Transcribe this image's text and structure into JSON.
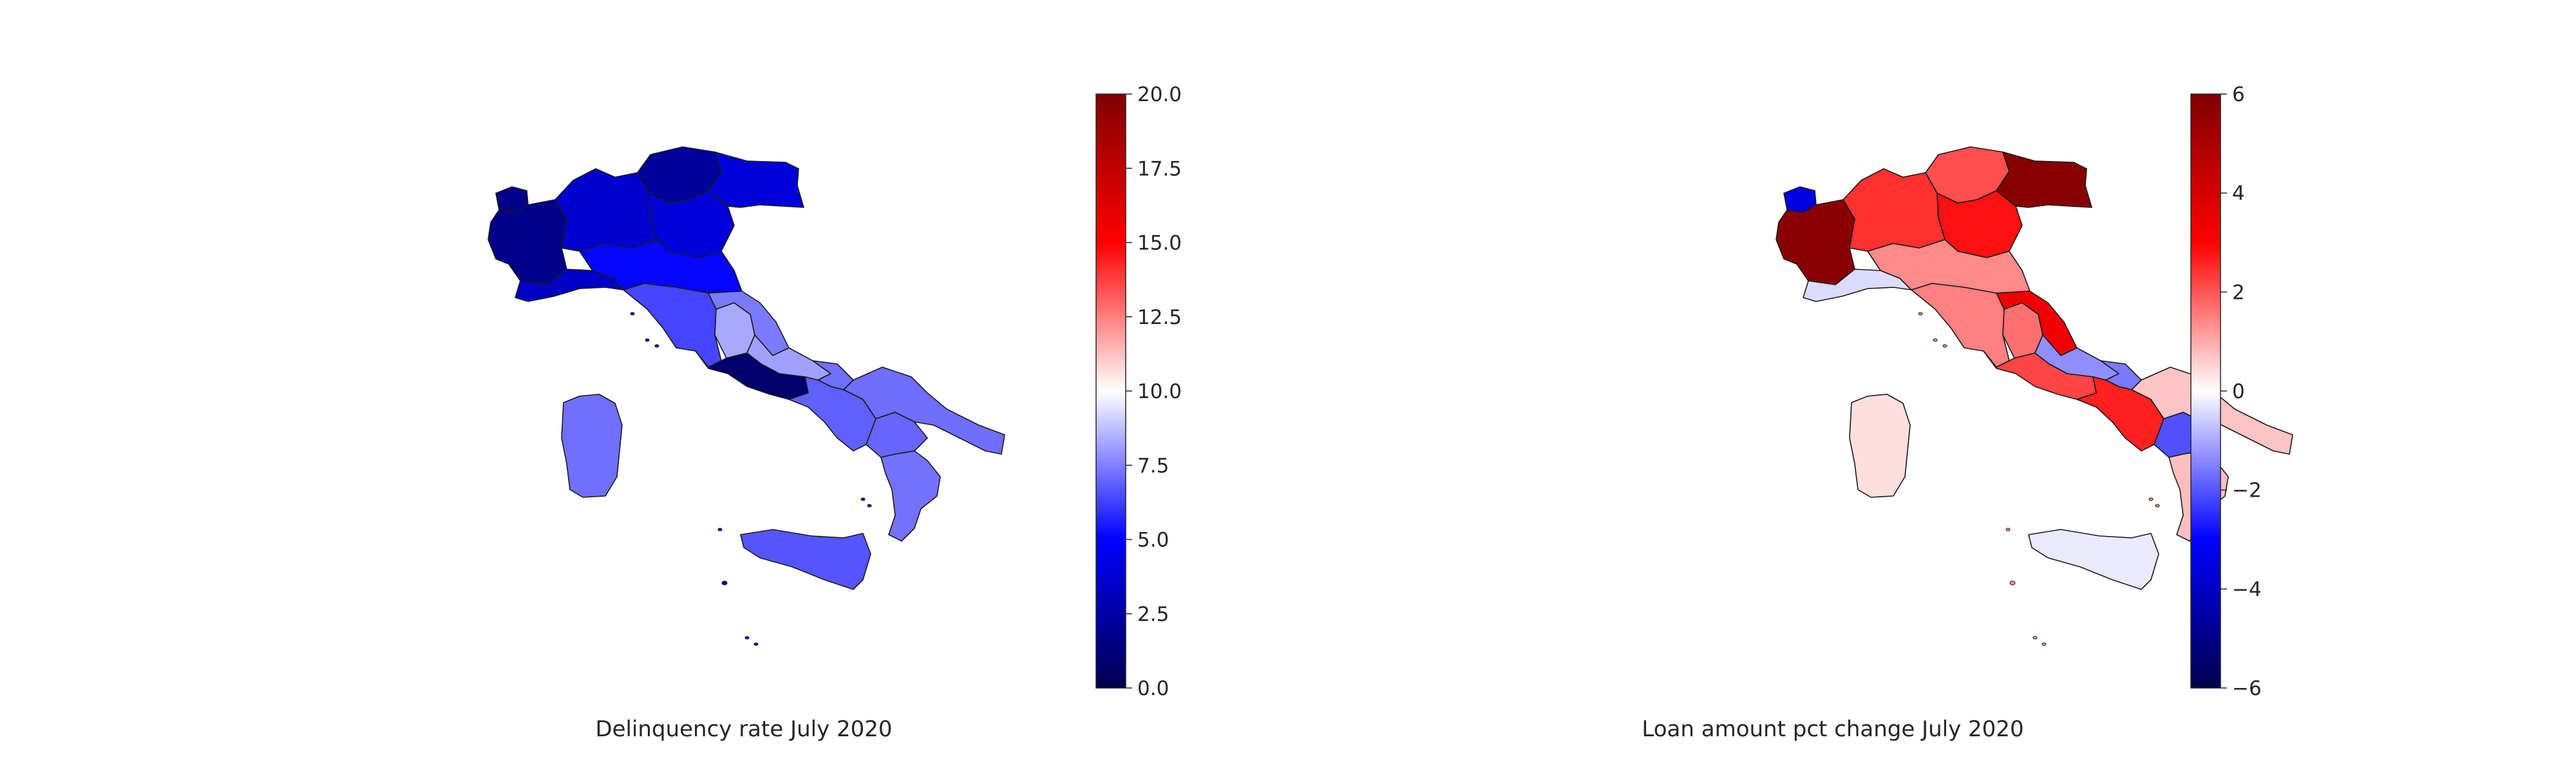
{
  "maps": [
    {
      "caption": "Delinquency rate July 2020",
      "colormap": "seismic",
      "colorbar": {
        "min": 0,
        "max": 20,
        "ticks": [
          {
            "value": 0,
            "label": "0.0"
          },
          {
            "value": 2.5,
            "label": "2.5"
          },
          {
            "value": 5,
            "label": "5.0"
          },
          {
            "value": 7.5,
            "label": "7.5"
          },
          {
            "value": 10,
            "label": "10.0"
          },
          {
            "value": 12.5,
            "label": "12.5"
          },
          {
            "value": 15,
            "label": "15.0"
          },
          {
            "value": 17.5,
            "label": "17.5"
          },
          {
            "value": 20,
            "label": "20.0"
          }
        ]
      },
      "region_colors": {
        "valle-d-aosta": "#00008b",
        "piemonte": "#00008b",
        "lombardia": "#0000d0",
        "trentino-alto-adige": "#00009a",
        "veneto": "#0000d8",
        "friuli-venezia-giulia": "#0000d8",
        "liguria": "#0000c8",
        "emilia-romagna": "#0505ff",
        "toscana": "#4545ff",
        "umbria": "#a8a8ff",
        "marche": "#7a7aff",
        "lazio": "#00006e",
        "abruzzo": "#a0a0ff",
        "molise": "#7070ff",
        "campania": "#6060ff",
        "puglia": "#6e6eff",
        "basilicata": "#6666ff",
        "calabria": "#7272ff",
        "sicilia": "#5555ff",
        "sardegna": "#7070ff"
      }
    },
    {
      "caption": "Loan amount pct change July 2020",
      "colormap": "seismic",
      "colorbar": {
        "min": -6,
        "max": 6,
        "ticks": [
          {
            "value": -6,
            "label": "−6"
          },
          {
            "value": -4,
            "label": "−4"
          },
          {
            "value": -2,
            "label": "−2"
          },
          {
            "value": 0,
            "label": "0"
          },
          {
            "value": 2,
            "label": "2"
          },
          {
            "value": 4,
            "label": "4"
          },
          {
            "value": 6,
            "label": "6"
          }
        ]
      },
      "region_colors": {
        "valle-d-aosta": "#0000e0",
        "piemonte": "#8a0000",
        "lombardia": "#ff3030",
        "trentino-alto-adige": "#ff4f4f",
        "veneto": "#ff1010",
        "friuli-venezia-giulia": "#860000",
        "liguria": "#dcdcff",
        "emilia-romagna": "#ff8a8a",
        "toscana": "#ff8080",
        "umbria": "#ff7070",
        "marche": "#f00000",
        "lazio": "#ff4545",
        "abruzzo": "#8f8fff",
        "molise": "#7a7aff",
        "campania": "#ff2020",
        "puglia": "#ffc4c4",
        "basilicata": "#5050ff",
        "calabria": "#ffbebe",
        "sicilia": "#eaeaff",
        "sardegna": "#ffdede"
      }
    }
  ]
}
